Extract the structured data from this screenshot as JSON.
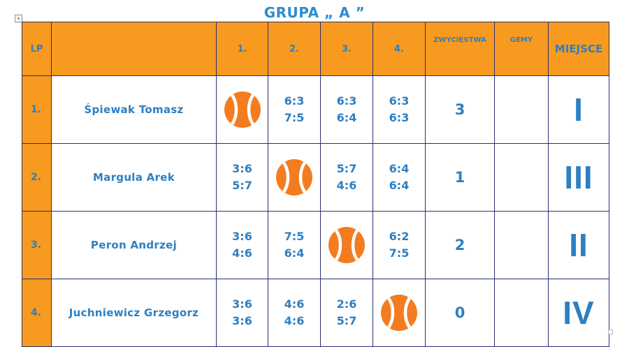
{
  "title": "GRUPA „ A ”",
  "colors": {
    "header_fill": "#f79a1f",
    "text_blue": "#2e7fc1",
    "border": "#2b2f73",
    "ball": "#f47c20"
  },
  "table": {
    "headers": {
      "lp": "LP",
      "name": "",
      "c1": "1.",
      "c2": "2.",
      "c3": "3.",
      "c4": "4.",
      "wins": "ZWYCIĘSTWA",
      "games": "GEMY",
      "place": "MIEJSCE"
    },
    "rows": [
      {
        "lp": "1.",
        "name": "Śpiewak Tomasz",
        "c1": {
          "self": true,
          "icon": "tennis-ball-icon"
        },
        "c2": {
          "s1": "6:3",
          "s2": "7:5"
        },
        "c3": {
          "s1": "6:3",
          "s2": "6:4"
        },
        "c4": {
          "s1": "6:3",
          "s2": "6:3"
        },
        "wins": "3",
        "games": "",
        "place": "I"
      },
      {
        "lp": "2.",
        "name": "Margula Arek",
        "c1": {
          "s1": "3:6",
          "s2": "5:7"
        },
        "c2": {
          "self": true,
          "icon": "tennis-ball-icon"
        },
        "c3": {
          "s1": "5:7",
          "s2": "4:6"
        },
        "c4": {
          "s1": "6:4",
          "s2": "6:4"
        },
        "wins": "1",
        "games": "",
        "place": "III"
      },
      {
        "lp": "3.",
        "name": "Peron Andrzej",
        "c1": {
          "s1": "3:6",
          "s2": "4:6"
        },
        "c2": {
          "s1": "7:5",
          "s2": "6:4"
        },
        "c3": {
          "self": true,
          "icon": "tennis-ball-icon"
        },
        "c4": {
          "s1": "6:2",
          "s2": "7:5"
        },
        "wins": "2",
        "games": "",
        "place": "II"
      },
      {
        "lp": "4.",
        "name": "Juchniewicz Grzegorz",
        "c1": {
          "s1": "3:6",
          "s2": "3:6"
        },
        "c2": {
          "s1": "4:6",
          "s2": "4:6"
        },
        "c3": {
          "s1": "2:6",
          "s2": "5:7"
        },
        "c4": {
          "self": true,
          "icon": "tennis-ball-icon"
        },
        "wins": "0",
        "games": "",
        "place": "IV"
      }
    ]
  }
}
